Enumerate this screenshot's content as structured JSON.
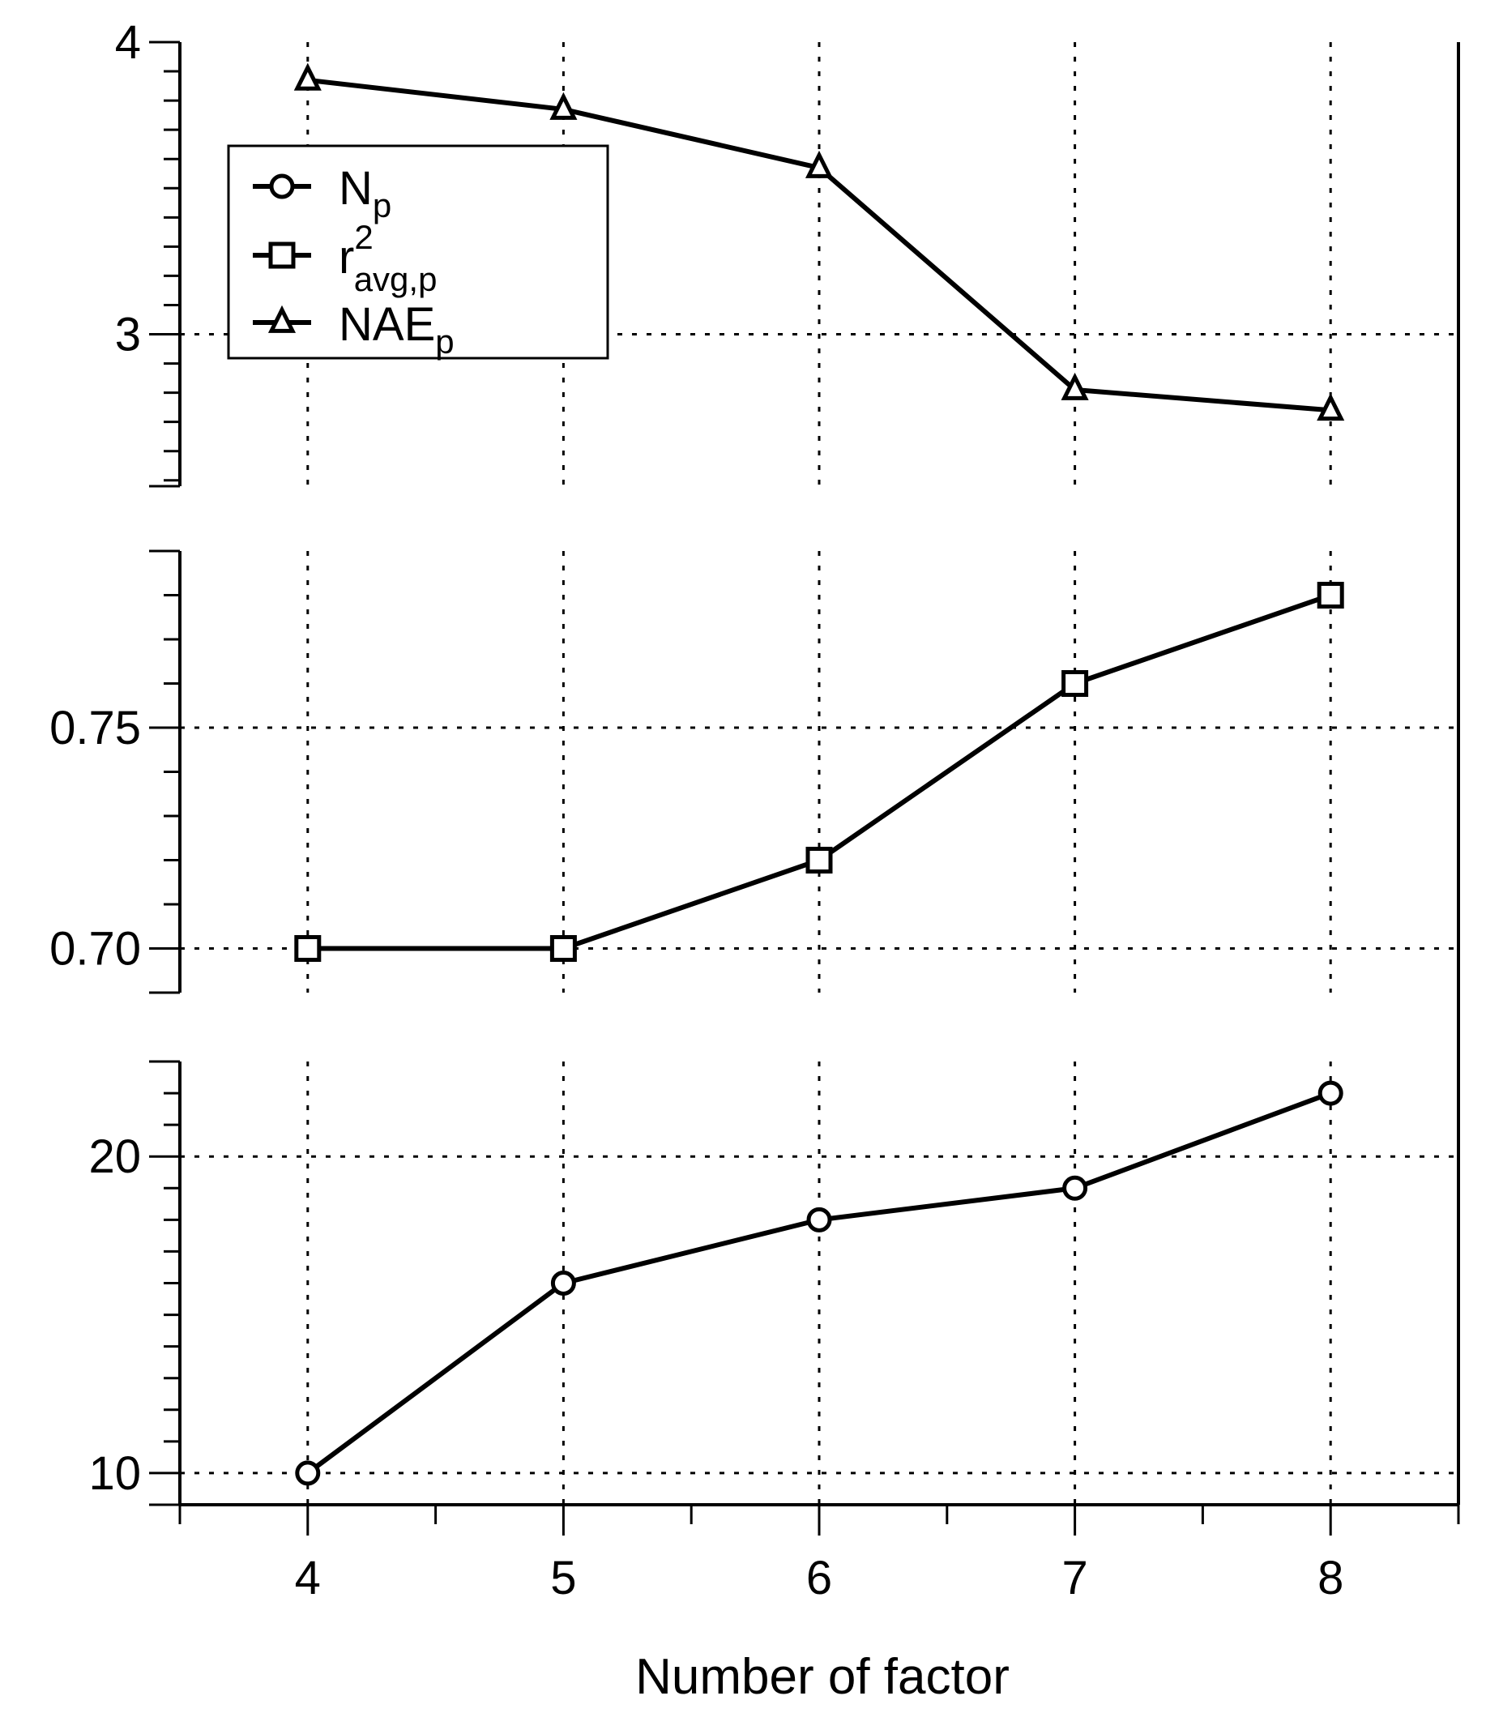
{
  "chart_data": {
    "type": "line",
    "xlabel": "Number of factor",
    "x": [
      4,
      5,
      6,
      7,
      8
    ],
    "xlim": [
      3.5,
      8.5
    ],
    "x_ticks": [
      4,
      5,
      6,
      7,
      8
    ],
    "grid": true,
    "legend_position": "top-left",
    "legend": [
      {
        "series": "Np",
        "base": "N",
        "sub": "p",
        "sup": "",
        "marker": "circle"
      },
      {
        "series": "r2avgp",
        "base": "r",
        "sub": "avg,p",
        "sup": "2",
        "marker": "square"
      },
      {
        "series": "NAEp",
        "base": "NAE",
        "sub": "p",
        "sup": "",
        "marker": "triangle"
      }
    ],
    "panels": [
      {
        "id": "NAEp",
        "series_key": "NAEp",
        "marker": "triangle",
        "ylim": [
          2.48,
          4.0
        ],
        "major_ticks": [
          3,
          4
        ],
        "tick_labels": [
          "3",
          "4"
        ],
        "minor_tick_step": 0.1,
        "gridlines": [
          3
        ],
        "values": [
          3.87,
          3.77,
          3.57,
          2.81,
          2.74
        ]
      },
      {
        "id": "r2avgp",
        "series_key": "r2avgp",
        "marker": "square",
        "ylim": [
          0.69,
          0.79
        ],
        "major_ticks": [
          0.7,
          0.75
        ],
        "tick_labels": [
          "0.70",
          "0.75"
        ],
        "minor_tick_step": 0.01,
        "gridlines": [
          0.7,
          0.75
        ],
        "values": [
          0.7,
          0.7,
          0.72,
          0.76,
          0.78
        ]
      },
      {
        "id": "Np",
        "series_key": "Np",
        "marker": "circle",
        "ylim": [
          9,
          23
        ],
        "major_ticks": [
          10,
          20
        ],
        "tick_labels": [
          "10",
          "20"
        ],
        "minor_tick_step": 1,
        "gridlines": [
          10,
          20
        ],
        "values": [
          10,
          16,
          18,
          19,
          22
        ]
      }
    ]
  }
}
